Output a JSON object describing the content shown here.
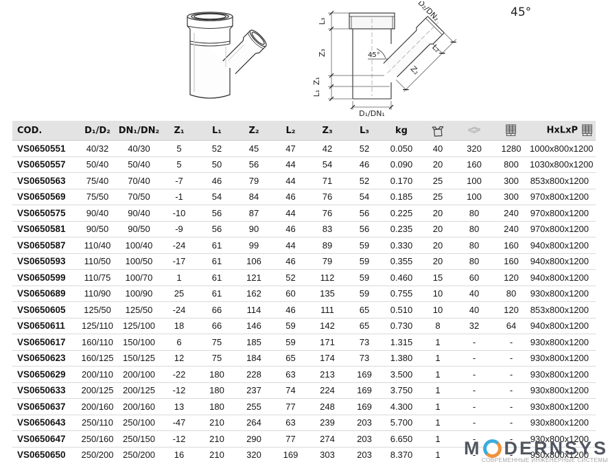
{
  "page": {
    "angle_label": "45°"
  },
  "drawing": {
    "labels": {
      "L3": "L₃",
      "Z3": "Z₃",
      "Z1": "Z₁",
      "L1": "L₁",
      "D1": "D₁/DN₁",
      "D2": "D₂/DN₂",
      "Z2": "Z₂",
      "L2": "L₂",
      "angle": "45°"
    }
  },
  "logo": {
    "word_start": "M",
    "word_end": "DERNSYS",
    "ring_blue": "#2ea7dd",
    "ring_orange": "#ef8b2e",
    "subtitle": "СОВРЕМЕННЫЕ ИНЖЕНЕРНЫЕ СИСТЕМЫ"
  },
  "table": {
    "columns": [
      {
        "label": "COD."
      },
      {
        "label": "D₁/D₂"
      },
      {
        "label": "DN₁/DN₂"
      },
      {
        "label": "Z₁"
      },
      {
        "label": "L₁"
      },
      {
        "label": "Z₂"
      },
      {
        "label": "L₂"
      },
      {
        "label": "Z₃"
      },
      {
        "label": "L₃"
      },
      {
        "label": "kg"
      },
      {
        "label": "",
        "icon": "box-icon"
      },
      {
        "label": "",
        "icon": "layer-icon"
      },
      {
        "label": "",
        "icon": "pallet-icon"
      },
      {
        "label": "HxLxP",
        "icon": "pallet-icon"
      }
    ],
    "rows": [
      [
        "VS0650551",
        "40/32",
        "40/30",
        "5",
        "52",
        "45",
        "47",
        "42",
        "52",
        "0.050",
        "40",
        "320",
        "1280",
        "1000x800x1200"
      ],
      [
        "VS0650557",
        "50/40",
        "50/40",
        "5",
        "50",
        "56",
        "44",
        "54",
        "46",
        "0.090",
        "20",
        "160",
        "800",
        "1030x800x1200"
      ],
      [
        "VS0650563",
        "75/40",
        "70/40",
        "-7",
        "46",
        "79",
        "44",
        "71",
        "52",
        "0.170",
        "25",
        "100",
        "300",
        "853x800x1200"
      ],
      [
        "VS0650569",
        "75/50",
        "70/50",
        "-1",
        "54",
        "84",
        "46",
        "76",
        "54",
        "0.185",
        "25",
        "100",
        "300",
        "970x800x1200"
      ],
      [
        "VS0650575",
        "90/40",
        "90/40",
        "-10",
        "56",
        "87",
        "44",
        "76",
        "56",
        "0.225",
        "20",
        "80",
        "240",
        "970x800x1200"
      ],
      [
        "VS0650581",
        "90/50",
        "90/50",
        "-9",
        "56",
        "90",
        "46",
        "83",
        "56",
        "0.235",
        "20",
        "80",
        "240",
        "970x800x1200"
      ],
      [
        "VS0650587",
        "110/40",
        "100/40",
        "-24",
        "61",
        "99",
        "44",
        "89",
        "59",
        "0.330",
        "20",
        "80",
        "160",
        "940x800x1200"
      ],
      [
        "VS0650593",
        "110/50",
        "100/50",
        "-17",
        "61",
        "106",
        "46",
        "79",
        "59",
        "0.355",
        "20",
        "80",
        "160",
        "940x800x1200"
      ],
      [
        "VS0650599",
        "110/75",
        "100/70",
        "1",
        "61",
        "121",
        "52",
        "112",
        "59",
        "0.460",
        "15",
        "60",
        "120",
        "940x800x1200"
      ],
      [
        "VS0650689",
        "110/90",
        "100/90",
        "25",
        "61",
        "162",
        "60",
        "135",
        "59",
        "0.755",
        "10",
        "40",
        "80",
        "930x800x1200"
      ],
      [
        "VS0650605",
        "125/50",
        "125/50",
        "-24",
        "66",
        "114",
        "46",
        "111",
        "65",
        "0.510",
        "10",
        "40",
        "120",
        "853x800x1200"
      ],
      [
        "VS0650611",
        "125/110",
        "125/100",
        "18",
        "66",
        "146",
        "59",
        "142",
        "65",
        "0.730",
        "8",
        "32",
        "64",
        "940x800x1200"
      ],
      [
        "VS0650617",
        "160/110",
        "150/100",
        "6",
        "75",
        "185",
        "59",
        "171",
        "73",
        "1.315",
        "1",
        "-",
        "-",
        "930x800x1200"
      ],
      [
        "VS0650623",
        "160/125",
        "150/125",
        "12",
        "75",
        "184",
        "65",
        "174",
        "73",
        "1.380",
        "1",
        "-",
        "-",
        "930x800x1200"
      ],
      [
        "VS0650629",
        "200/110",
        "200/100",
        "-22",
        "180",
        "228",
        "63",
        "213",
        "169",
        "3.500",
        "1",
        "-",
        "-",
        "930x800x1200"
      ],
      [
        "VS0650633",
        "200/125",
        "200/125",
        "-12",
        "180",
        "237",
        "74",
        "224",
        "169",
        "3.750",
        "1",
        "-",
        "-",
        "930x800x1200"
      ],
      [
        "VS0650637",
        "200/160",
        "200/160",
        "13",
        "180",
        "255",
        "77",
        "248",
        "169",
        "4.300",
        "1",
        "-",
        "-",
        "930x800x1200"
      ],
      [
        "VS0650643",
        "250/110",
        "250/100",
        "-47",
        "210",
        "264",
        "63",
        "239",
        "203",
        "5.700",
        "1",
        "-",
        "-",
        "930x800x1200"
      ],
      [
        "VS0650647",
        "250/160",
        "250/150",
        "-12",
        "210",
        "290",
        "77",
        "274",
        "203",
        "6.650",
        "1",
        "-",
        "-",
        "930x800x1200"
      ],
      [
        "VS0650650",
        "250/200",
        "250/200",
        "16",
        "210",
        "320",
        "169",
        "303",
        "203",
        "8.370",
        "1",
        "-",
        "-",
        "930x800x1200"
      ]
    ]
  }
}
